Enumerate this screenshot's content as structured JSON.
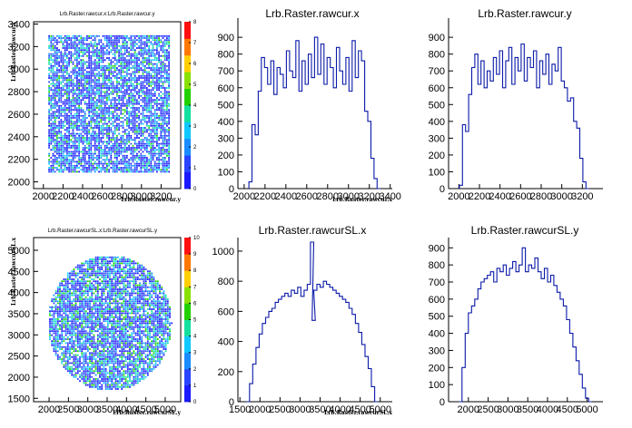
{
  "chart_data": [
    {
      "type": "heatmap",
      "title": "Lrb.Raster.rawcur.x:Lrb.Raster.rawcur.y",
      "xlabel": "Lrb.Raster.rawcur.y",
      "ylabel": "Lrb.Raster.rawcur.x",
      "xlim": [
        1900,
        3400
      ],
      "ylim": [
        1940,
        3420
      ],
      "xticks": [
        "2000",
        "2200",
        "2400",
        "2600",
        "2800",
        "3000",
        "3200"
      ],
      "yticks": [
        "2000",
        "2200",
        "2400",
        "2600",
        "2800",
        "3000",
        "3200",
        "3400"
      ],
      "region": {
        "shape": "rectangle",
        "x": [
          2050,
          3280
        ],
        "y": [
          2080,
          3300
        ]
      },
      "colorbar": {
        "min": 0,
        "max": 8,
        "ticks": [
          "0",
          "1",
          "2",
          "3",
          "4",
          "5",
          "6",
          "7",
          "8"
        ]
      },
      "grid": false
    },
    {
      "type": "line",
      "title": "Lrb.Raster.rawcur.x",
      "xlabel": "Lrb.Raster.rawcur.x",
      "xlim": [
        1940,
        3420
      ],
      "ylim": [
        0,
        960
      ],
      "xticks": [
        "2000",
        "2200",
        "2400",
        "2600",
        "2800",
        "3000",
        "3200",
        "3400"
      ],
      "yticks": [
        "0",
        "100",
        "200",
        "300",
        "400",
        "500",
        "600",
        "700",
        "800",
        "900"
      ],
      "x": [
        2060,
        2090,
        2120,
        2150,
        2180,
        2210,
        2240,
        2270,
        2300,
        2330,
        2360,
        2390,
        2420,
        2450,
        2480,
        2510,
        2540,
        2570,
        2600,
        2630,
        2660,
        2690,
        2720,
        2750,
        2780,
        2810,
        2840,
        2870,
        2900,
        2930,
        2960,
        2990,
        3020,
        3050,
        3080,
        3110,
        3140,
        3170,
        3200,
        3230,
        3260,
        3290
      ],
      "values": [
        40,
        380,
        320,
        580,
        780,
        720,
        620,
        760,
        560,
        720,
        680,
        600,
        820,
        700,
        660,
        880,
        580,
        760,
        620,
        800,
        660,
        900,
        680,
        860,
        620,
        780,
        720,
        600,
        840,
        700,
        620,
        780,
        580,
        880,
        660,
        820,
        760,
        460,
        400,
        180,
        60,
        0
      ],
      "grid": false
    },
    {
      "type": "line",
      "title": "Lrb.Raster.rawcur.y",
      "xlim": [
        1900,
        3400
      ],
      "ylim": [
        0,
        960
      ],
      "xticks": [
        "2000",
        "2200",
        "2400",
        "2600",
        "2800",
        "3000",
        "3200"
      ],
      "yticks": [
        "0",
        "100",
        "200",
        "300",
        "400",
        "500",
        "600",
        "700",
        "800",
        "900"
      ],
      "x": [
        2020,
        2050,
        2080,
        2110,
        2140,
        2170,
        2200,
        2230,
        2260,
        2290,
        2320,
        2350,
        2380,
        2410,
        2440,
        2470,
        2500,
        2530,
        2560,
        2590,
        2620,
        2650,
        2680,
        2710,
        2740,
        2770,
        2800,
        2830,
        2860,
        2890,
        2920,
        2950,
        2980,
        3010,
        3040,
        3070,
        3100,
        3130,
        3160,
        3190,
        3220,
        3250
      ],
      "values": [
        20,
        380,
        340,
        560,
        720,
        800,
        620,
        760,
        600,
        700,
        640,
        780,
        680,
        820,
        600,
        760,
        840,
        620,
        780,
        700,
        860,
        640,
        780,
        720,
        820,
        600,
        760,
        680,
        800,
        620,
        740,
        700,
        840,
        640,
        600,
        520,
        540,
        400,
        360,
        180,
        40,
        0
      ],
      "grid": false
    },
    {
      "type": "heatmap",
      "title": "Lrb.Raster.rawcurSL.x:Lrb.Raster.rawcurSL.y",
      "xlabel": "Lrb.Raster.rawcurSL.y",
      "ylabel": "Lrb.Raster.rawcurSL.x",
      "xlim": [
        1600,
        5400
      ],
      "ylim": [
        1420,
        5300
      ],
      "xticks": [
        "2000",
        "2500",
        "3000",
        "3500",
        "4000",
        "4500",
        "5000"
      ],
      "yticks": [
        "1500",
        "2000",
        "2500",
        "3000",
        "3500",
        "4000",
        "4500",
        "5000"
      ],
      "region": {
        "shape": "circle",
        "cx": 3550,
        "cy": 3300,
        "r": 1600
      },
      "colorbar": {
        "min": 0,
        "max": 10,
        "ticks": [
          "0",
          "1",
          "2",
          "3",
          "4",
          "5",
          "6",
          "7",
          "8",
          "9",
          "10"
        ]
      },
      "grid": false
    },
    {
      "type": "line",
      "title": "Lrb.Raster.rawcurSL.x",
      "xlabel": "Lrb.Raster.rawcurSL.x",
      "xlim": [
        1450,
        5300
      ],
      "ylim": [
        0,
        1090
      ],
      "xticks": [
        "1500",
        "2000",
        "2500",
        "3000",
        "3500",
        "4000",
        "4500",
        "5000"
      ],
      "yticks": [
        "0",
        "200",
        "400",
        "600",
        "800",
        "1000"
      ],
      "x": [
        1700,
        1780,
        1860,
        1940,
        2020,
        2100,
        2180,
        2260,
        2340,
        2420,
        2500,
        2580,
        2660,
        2740,
        2820,
        2900,
        2980,
        3060,
        3140,
        3220,
        3300,
        3340,
        3380,
        3460,
        3540,
        3620,
        3700,
        3780,
        3860,
        3940,
        4020,
        4100,
        4180,
        4260,
        4340,
        4420,
        4500,
        4580,
        4660,
        4740,
        4820,
        4900
      ],
      "values": [
        0,
        120,
        250,
        360,
        450,
        520,
        560,
        600,
        620,
        660,
        680,
        700,
        720,
        700,
        740,
        720,
        760,
        700,
        740,
        780,
        1060,
        540,
        740,
        780,
        760,
        800,
        780,
        760,
        740,
        720,
        700,
        680,
        660,
        620,
        580,
        520,
        460,
        380,
        300,
        220,
        100,
        0
      ],
      "grid": false
    },
    {
      "type": "line",
      "title": "Lrb.Raster.rawcurSL.y",
      "xlim": [
        1500,
        5400
      ],
      "ylim": [
        0,
        960
      ],
      "xticks": [
        "2000",
        "2500",
        "3000",
        "3500",
        "4000",
        "4500",
        "5000"
      ],
      "yticks": [
        "0",
        "100",
        "200",
        "300",
        "400",
        "500",
        "600",
        "700",
        "800",
        "900"
      ],
      "x": [
        1800,
        1880,
        1960,
        2040,
        2120,
        2200,
        2280,
        2360,
        2440,
        2520,
        2600,
        2680,
        2760,
        2840,
        2920,
        3000,
        3080,
        3160,
        3240,
        3320,
        3400,
        3480,
        3560,
        3640,
        3720,
        3800,
        3880,
        3960,
        4040,
        4120,
        4200,
        4280,
        4360,
        4440,
        4520,
        4600,
        4680,
        4760,
        4840,
        4920,
        5000,
        5080
      ],
      "values": [
        0,
        200,
        400,
        520,
        560,
        600,
        660,
        700,
        720,
        740,
        760,
        700,
        780,
        760,
        800,
        740,
        780,
        820,
        760,
        800,
        900,
        760,
        800,
        780,
        840,
        760,
        720,
        780,
        700,
        740,
        680,
        640,
        600,
        560,
        480,
        400,
        320,
        240,
        160,
        80,
        20,
        0
      ],
      "grid": false
    }
  ]
}
